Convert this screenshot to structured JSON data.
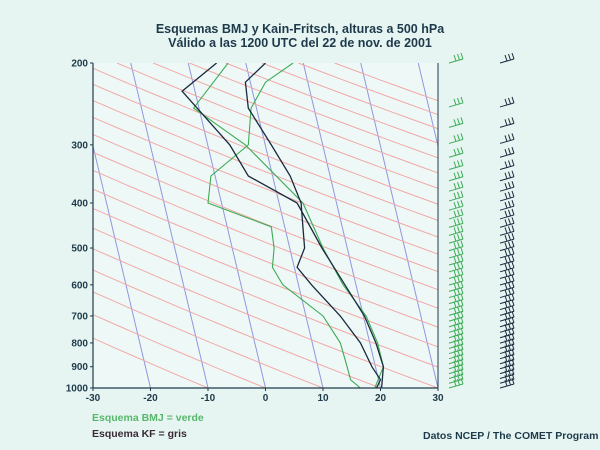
{
  "chart_data": {
    "type": "line",
    "subtype": "skew-T log-P sounding",
    "title": "Esquemas BMJ y Kain-Fritsch, alturas a 500 hPa",
    "subtitle": "Válido a las 1200 UTC del 22 de nov. de 2001",
    "xlabel": "",
    "ylabel": "",
    "x_ticks": [
      -30,
      -20,
      -10,
      0,
      10,
      20,
      30
    ],
    "y_ticks": [
      200,
      300,
      400,
      500,
      600,
      700,
      800,
      900,
      1000
    ],
    "xlim": [
      -30,
      30
    ],
    "ylim": [
      1000,
      200
    ],
    "y_scale": "log",
    "series": [
      {
        "name": "Esquema BMJ = verde",
        "color": "#3cab55",
        "temperature": [
          {
            "p": 200,
            "x": 4.8
          },
          {
            "p": 220,
            "x": 0
          },
          {
            "p": 250,
            "x": -2.5
          },
          {
            "p": 300,
            "x": -3
          },
          {
            "p": 350,
            "x": -9.5
          },
          {
            "p": 400,
            "x": -10
          },
          {
            "p": 450,
            "x": 1
          },
          {
            "p": 500,
            "x": 1.5
          },
          {
            "p": 550,
            "x": 1.2
          },
          {
            "p": 600,
            "x": 3
          },
          {
            "p": 700,
            "x": 10
          },
          {
            "p": 800,
            "x": 13
          },
          {
            "p": 900,
            "x": 14.2
          },
          {
            "p": 960,
            "x": 14.8
          },
          {
            "p": 1000,
            "x": 16.5
          }
        ],
        "dewpoint": [
          {
            "p": 200,
            "x": -6.5
          },
          {
            "p": 250,
            "x": -12.5
          },
          {
            "p": 300,
            "x": -3.5
          },
          {
            "p": 400,
            "x": 6.5
          },
          {
            "p": 500,
            "x": 10
          },
          {
            "p": 600,
            "x": 13.5
          },
          {
            "p": 700,
            "x": 17.5
          },
          {
            "p": 800,
            "x": 19.5
          },
          {
            "p": 900,
            "x": 20.5
          },
          {
            "p": 1000,
            "x": 19
          }
        ]
      },
      {
        "name": "Esquema KF = gris",
        "color": "#1a2a3e",
        "temperature": [
          {
            "p": 200,
            "x": 0
          },
          {
            "p": 220,
            "x": -3.5
          },
          {
            "p": 250,
            "x": -3
          },
          {
            "p": 300,
            "x": 1
          },
          {
            "p": 350,
            "x": 4.3
          },
          {
            "p": 400,
            "x": 6.2
          },
          {
            "p": 450,
            "x": 6.5
          },
          {
            "p": 500,
            "x": 6.8
          },
          {
            "p": 550,
            "x": 5.5
          },
          {
            "p": 600,
            "x": 8
          },
          {
            "p": 700,
            "x": 13
          },
          {
            "p": 800,
            "x": 16.5
          },
          {
            "p": 900,
            "x": 18.5
          },
          {
            "p": 960,
            "x": 20
          },
          {
            "p": 1000,
            "x": 19.3
          }
        ],
        "dewpoint": [
          {
            "p": 200,
            "x": -8.5
          },
          {
            "p": 230,
            "x": -14.5
          },
          {
            "p": 300,
            "x": -6.2
          },
          {
            "p": 350,
            "x": -3
          },
          {
            "p": 400,
            "x": 5.5
          },
          {
            "p": 500,
            "x": 9.8
          },
          {
            "p": 600,
            "x": 13.8
          },
          {
            "p": 700,
            "x": 17.2
          },
          {
            "p": 800,
            "x": 19.2
          },
          {
            "p": 900,
            "x": 20.5
          },
          {
            "p": 1000,
            "x": 20.2
          }
        ]
      }
    ],
    "wind_barbs": [
      {
        "name": "Esquema BMJ = verde",
        "color": "#3cab55",
        "direction": "west",
        "levels": 39
      },
      {
        "name": "Esquema KF = gris",
        "color": "#1a2a3e",
        "direction": "west",
        "levels": 39
      }
    ],
    "background_lines": {
      "isotherms": "blue",
      "adiabats": "salmon"
    },
    "grid": false,
    "legend_placement": "bottom-left"
  },
  "legend": {
    "bmj": "Esquema BMJ = verde",
    "kf": "Esquema KF = gris"
  },
  "credit": "Datos NCEP / The COMET Program",
  "colors": {
    "background": "#e6f5f2",
    "plot_background": "#eef9f7",
    "isotherm": "#8f96e0",
    "adiabat": "#f2a8a8",
    "axis_text": "#1e3a4a"
  }
}
